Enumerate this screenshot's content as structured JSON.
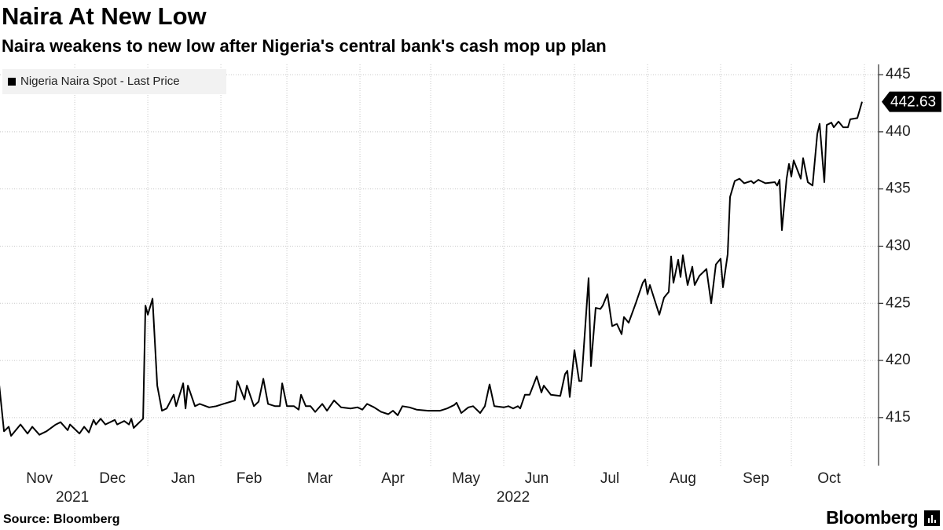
{
  "chart_data": {
    "type": "line",
    "title": "Naira At New Low",
    "subtitle": "Naira weakens to new low after Nigeria's central bank's cash mop up plan",
    "source": "Source: Bloomberg",
    "logo": "Bloomberg",
    "x": [
      -2,
      0,
      2,
      3,
      7,
      10,
      12,
      15,
      18,
      22,
      24,
      27,
      28,
      32,
      34,
      36,
      38,
      39,
      41,
      43,
      47,
      48,
      51,
      53,
      54,
      55,
      57,
      59,
      60,
      61,
      63,
      65,
      67,
      69,
      72,
      73,
      76,
      77,
      78,
      81,
      83,
      87,
      90,
      93,
      98,
      99,
      102,
      103,
      106,
      108,
      110,
      112,
      115,
      117,
      118,
      120,
      123,
      125,
      126,
      128,
      130,
      132,
      135,
      137,
      140,
      143,
      147,
      150,
      152,
      154,
      157,
      160,
      163,
      165,
      167,
      169,
      172,
      175,
      180,
      185,
      188,
      191,
      192,
      194,
      197,
      199,
      202,
      204,
      206,
      208,
      212,
      214,
      216,
      218,
      219,
      221,
      223,
      226,
      228,
      229,
      232,
      236,
      238,
      239,
      240,
      242,
      244,
      245,
      248,
      249,
      251,
      253,
      254,
      256,
      258,
      260,
      262,
      263,
      265,
      268,
      271,
      272,
      273,
      274,
      278,
      280,
      282,
      283,
      284,
      286,
      287,
      288,
      290,
      292,
      293,
      295,
      298,
      300,
      302,
      304,
      305,
      307,
      308,
      310,
      312,
      314,
      317,
      318,
      320,
      323,
      327,
      328,
      329,
      330,
      332,
      333,
      334,
      335,
      338,
      339,
      341,
      343,
      345,
      346,
      348,
      349,
      351,
      352,
      354,
      356,
      358,
      359,
      362,
      364
    ],
    "series": [
      {
        "name": "Nigeria Naira Spot - Last Price",
        "color": "#000000",
        "values": [
          417.8,
          413.8,
          414.2,
          413.4,
          414.4,
          413.6,
          414.2,
          413.5,
          413.8,
          414.4,
          414.6,
          413.9,
          414.4,
          413.6,
          414.2,
          413.7,
          414.8,
          414.4,
          414.9,
          414.4,
          414.8,
          414.4,
          414.7,
          414.4,
          414.9,
          414.1,
          414.5,
          414.9,
          424.8,
          424.0,
          425.4,
          417.8,
          415.6,
          415.8,
          417.0,
          416.0,
          418.0,
          415.8,
          417.8,
          416.0,
          416.2,
          415.9,
          416.0,
          416.2,
          416.5,
          418.2,
          416.6,
          417.8,
          416.0,
          416.4,
          418.4,
          416.2,
          416.0,
          416.0,
          418.0,
          416.0,
          416.0,
          415.7,
          417.0,
          416.0,
          416.0,
          415.5,
          416.2,
          415.6,
          416.5,
          415.9,
          415.8,
          415.9,
          415.7,
          416.2,
          415.9,
          415.5,
          415.3,
          415.6,
          415.2,
          416.0,
          415.9,
          415.7,
          415.6,
          415.6,
          415.8,
          416.1,
          416.3,
          415.4,
          415.9,
          416.0,
          415.4,
          416.0,
          417.9,
          416.0,
          415.9,
          416.0,
          415.8,
          416.0,
          415.8,
          417.0,
          417.0,
          418.6,
          417.2,
          417.8,
          417.0,
          416.9,
          418.8,
          419.1,
          416.8,
          420.9,
          418.2,
          418.2,
          427.2,
          419.5,
          424.6,
          424.5,
          424.8,
          425.8,
          423.0,
          423.2,
          422.3,
          423.8,
          423.3,
          425.0,
          426.8,
          427.1,
          425.8,
          426.6,
          424.0,
          425.5,
          426.0,
          429.1,
          426.8,
          428.8,
          427.3,
          429.2,
          426.6,
          428.2,
          426.6,
          427.4,
          428.0,
          425.0,
          428.4,
          428.9,
          426.4,
          429.3,
          434.3,
          435.7,
          435.9,
          435.5,
          435.7,
          435.5,
          435.8,
          435.5,
          435.6,
          435.3,
          435.8,
          431.4,
          435.9,
          437.2,
          436.1,
          437.5,
          435.9,
          437.7,
          435.6,
          435.3,
          439.8,
          440.7,
          435.6,
          440.6,
          440.8,
          440.4,
          440.9,
          440.4,
          440.4,
          441.1,
          441.2,
          442.63
        ]
      }
    ],
    "xlim": [
      -1.7,
      371
    ],
    "xticks": [
      {
        "value": 15,
        "label": "Nov"
      },
      {
        "value": 46,
        "label": "Dec"
      },
      {
        "value": 76,
        "label": "Jan"
      },
      {
        "value": 104,
        "label": "Feb"
      },
      {
        "value": 134,
        "label": "Mar"
      },
      {
        "value": 165,
        "label": "Apr"
      },
      {
        "value": 196,
        "label": "May"
      },
      {
        "value": 226,
        "label": "Jun"
      },
      {
        "value": 257,
        "label": "Jul"
      },
      {
        "value": 288,
        "label": "Aug"
      },
      {
        "value": 319,
        "label": "Sep"
      },
      {
        "value": 350,
        "label": "Oct"
      }
    ],
    "year_labels": [
      {
        "value": 29,
        "label": "2021"
      },
      {
        "value": 216,
        "label": "2022"
      }
    ],
    "xgrid": [
      30,
      61,
      92,
      120,
      151,
      181,
      212,
      242,
      273,
      304,
      334,
      365
    ],
    "ylim": [
      410.8,
      445.9
    ],
    "yticks": [
      415,
      420,
      425,
      430,
      435,
      440,
      445
    ],
    "y_axis_side": "right",
    "grid": true,
    "legend": "top-left"
  }
}
